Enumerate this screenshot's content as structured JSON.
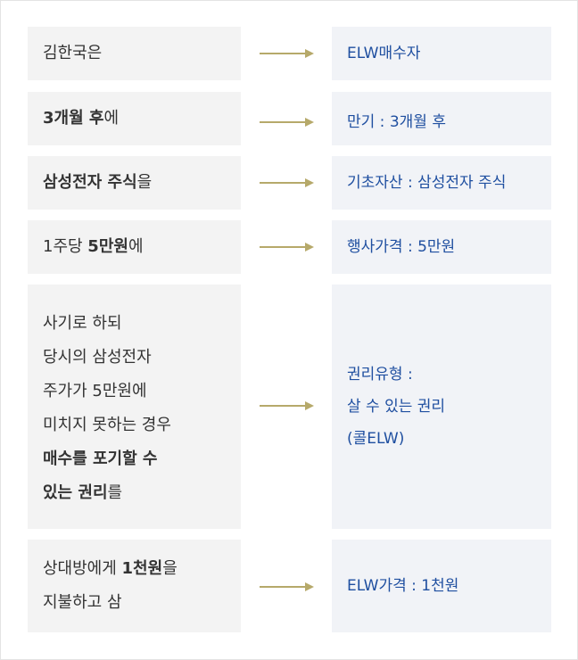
{
  "colors": {
    "left_bg": "#f3f3f3",
    "right_bg": "#f1f3f7",
    "left_text": "#333333",
    "right_text": "#1f4fa0",
    "arrow": "#b6a96a"
  },
  "rows": [
    {
      "left": [
        [
          {
            "t": "김한국은",
            "b": false
          }
        ]
      ],
      "right": [
        "ELW매수자"
      ]
    },
    {
      "left": [
        [
          {
            "t": "3개월 후",
            "b": true
          },
          {
            "t": "에",
            "b": false
          }
        ]
      ],
      "right": [
        "만기 : 3개월 후"
      ]
    },
    {
      "left": [
        [
          {
            "t": "삼성전자 주식",
            "b": true
          },
          {
            "t": "을",
            "b": false
          }
        ]
      ],
      "right": [
        "기초자산 : 삼성전자 주식"
      ]
    },
    {
      "left": [
        [
          {
            "t": "1주당 ",
            "b": false
          },
          {
            "t": "5만원",
            "b": true
          },
          {
            "t": "에",
            "b": false
          }
        ]
      ],
      "right": [
        "행사가격 : 5만원"
      ]
    },
    {
      "left": [
        [
          {
            "t": "사기로 하되",
            "b": false
          }
        ],
        [
          {
            "t": "당시의 삼성전자",
            "b": false
          }
        ],
        [
          {
            "t": "주가가 5만원에",
            "b": false
          }
        ],
        [
          {
            "t": "미치지 못하는 경우",
            "b": false
          }
        ],
        [
          {
            "t": "매수를 포기할 수",
            "b": true
          }
        ],
        [
          {
            "t": "있는 권리",
            "b": true
          },
          {
            "t": "를",
            "b": false
          }
        ]
      ],
      "right": [
        "권리유형 :",
        "살 수 있는 권리",
        "(콜ELW)"
      ]
    },
    {
      "left": [
        [
          {
            "t": "상대방에게 ",
            "b": false
          },
          {
            "t": "1천원",
            "b": true
          },
          {
            "t": "을",
            "b": false
          }
        ],
        [
          {
            "t": "지불하고 삼",
            "b": false
          }
        ]
      ],
      "right": [
        "ELW가격 : 1천원"
      ]
    }
  ]
}
